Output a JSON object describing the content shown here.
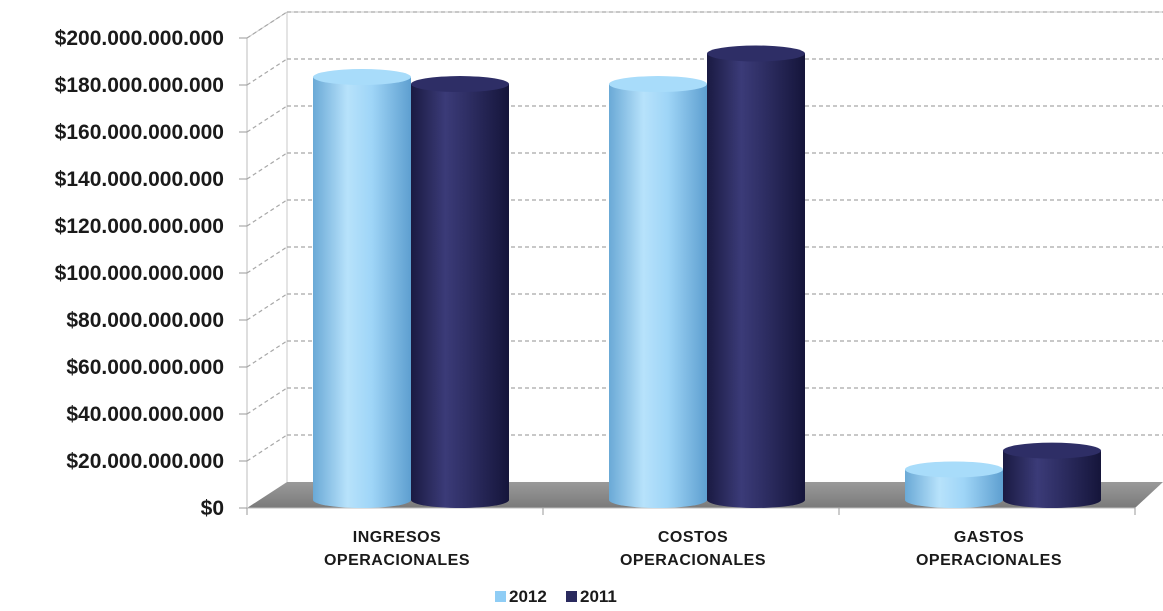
{
  "chart_data": {
    "type": "bar",
    "title": "",
    "xlabel": "",
    "ylabel": "",
    "categories": [
      [
        "INGRESOS",
        "OPERACIONALES"
      ],
      [
        "COSTOS",
        "OPERACIONALES"
      ],
      [
        "GASTOS",
        "OPERACIONALES"
      ]
    ],
    "series": [
      {
        "name": "2012",
        "color": "#8fcdf5",
        "values": [
          180000000000,
          177000000000,
          13000000000
        ]
      },
      {
        "name": "2011",
        "color": "#2a2a5e",
        "values": [
          177000000000,
          190000000000,
          21000000000
        ]
      }
    ],
    "ylim": [
      0,
      200000000000
    ],
    "y_ticks": [
      0,
      20000000000,
      40000000000,
      60000000000,
      80000000000,
      100000000000,
      120000000000,
      140000000000,
      160000000000,
      180000000000,
      200000000000
    ],
    "y_tick_labels": [
      "$0",
      "$20.000.000.000",
      "$40.000.000.000",
      "$60.000.000.000",
      "$80.000.000.000",
      "$100.000.000.000",
      "$120.000.000.000",
      "$140.000.000.000",
      "$160.000.000.000",
      "$180.000.000.000",
      "$200.000.000.000"
    ],
    "grid": true,
    "legend_position": "bottom-center",
    "style": "3d-cylinder"
  }
}
